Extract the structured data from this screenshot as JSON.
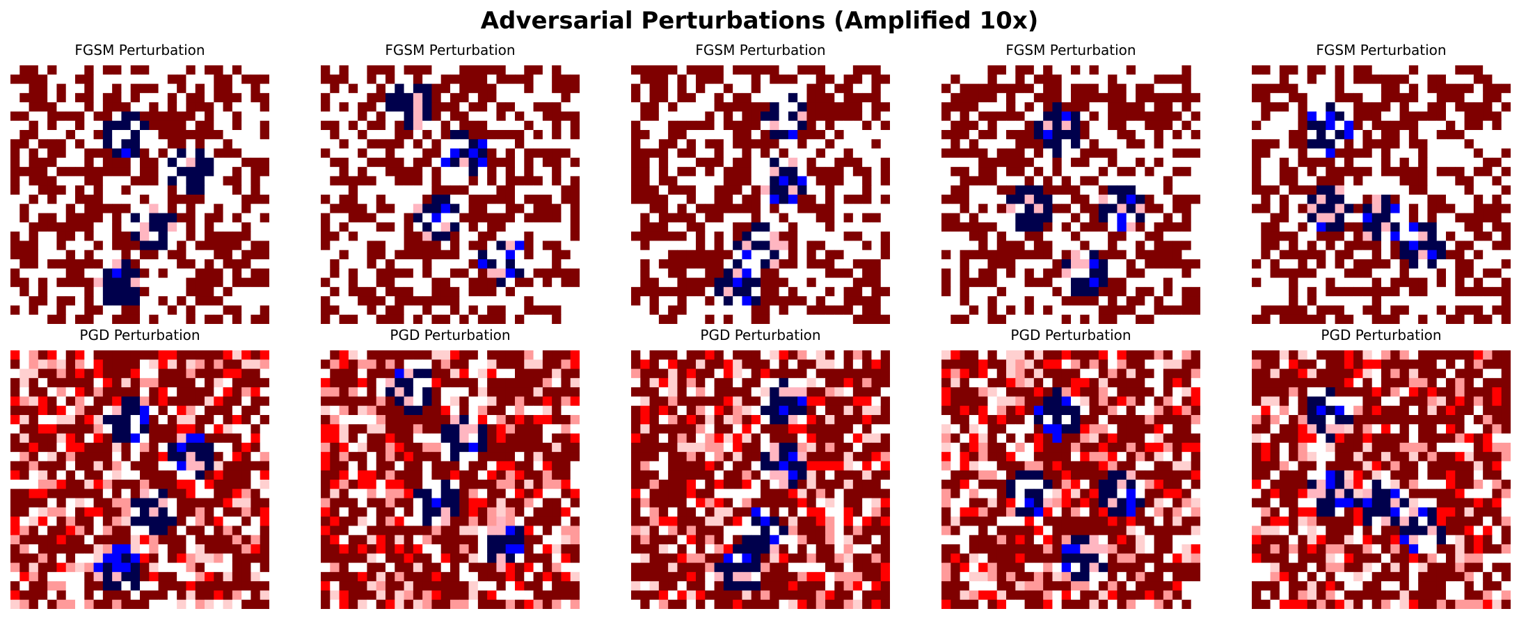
{
  "title": "Adversarial Perturbations (Amplified 10x)",
  "chart_data": {
    "type": "heatmap",
    "title": "Adversarial Perturbations (Amplified 10x)",
    "amplification": 10,
    "grid": "28x28",
    "colormap": "seismic",
    "colormap_colors": [
      "#00004c",
      "#0000ff",
      "#ffffff",
      "#ff0000",
      "#7f0000"
    ],
    "axes_visible": false,
    "panels": [
      {
        "title": "FGSM Perturbation",
        "method": "FGSM",
        "sample": 1,
        "row": 1,
        "col": 1
      },
      {
        "title": "FGSM Perturbation",
        "method": "FGSM",
        "sample": 2,
        "row": 1,
        "col": 2
      },
      {
        "title": "FGSM Perturbation",
        "method": "FGSM",
        "sample": 3,
        "row": 1,
        "col": 3
      },
      {
        "title": "FGSM Perturbation",
        "method": "FGSM",
        "sample": 4,
        "row": 1,
        "col": 4
      },
      {
        "title": "FGSM Perturbation",
        "method": "FGSM",
        "sample": 5,
        "row": 1,
        "col": 5
      },
      {
        "title": "PGD Perturbation",
        "method": "PGD",
        "sample": 1,
        "row": 2,
        "col": 1
      },
      {
        "title": "PGD Perturbation",
        "method": "PGD",
        "sample": 2,
        "row": 2,
        "col": 2
      },
      {
        "title": "PGD Perturbation",
        "method": "PGD",
        "sample": 3,
        "row": 2,
        "col": 3
      },
      {
        "title": "PGD Perturbation",
        "method": "PGD",
        "sample": 4,
        "row": 2,
        "col": 4
      },
      {
        "title": "PGD Perturbation",
        "method": "PGD",
        "sample": 5,
        "row": 2,
        "col": 5
      }
    ]
  }
}
